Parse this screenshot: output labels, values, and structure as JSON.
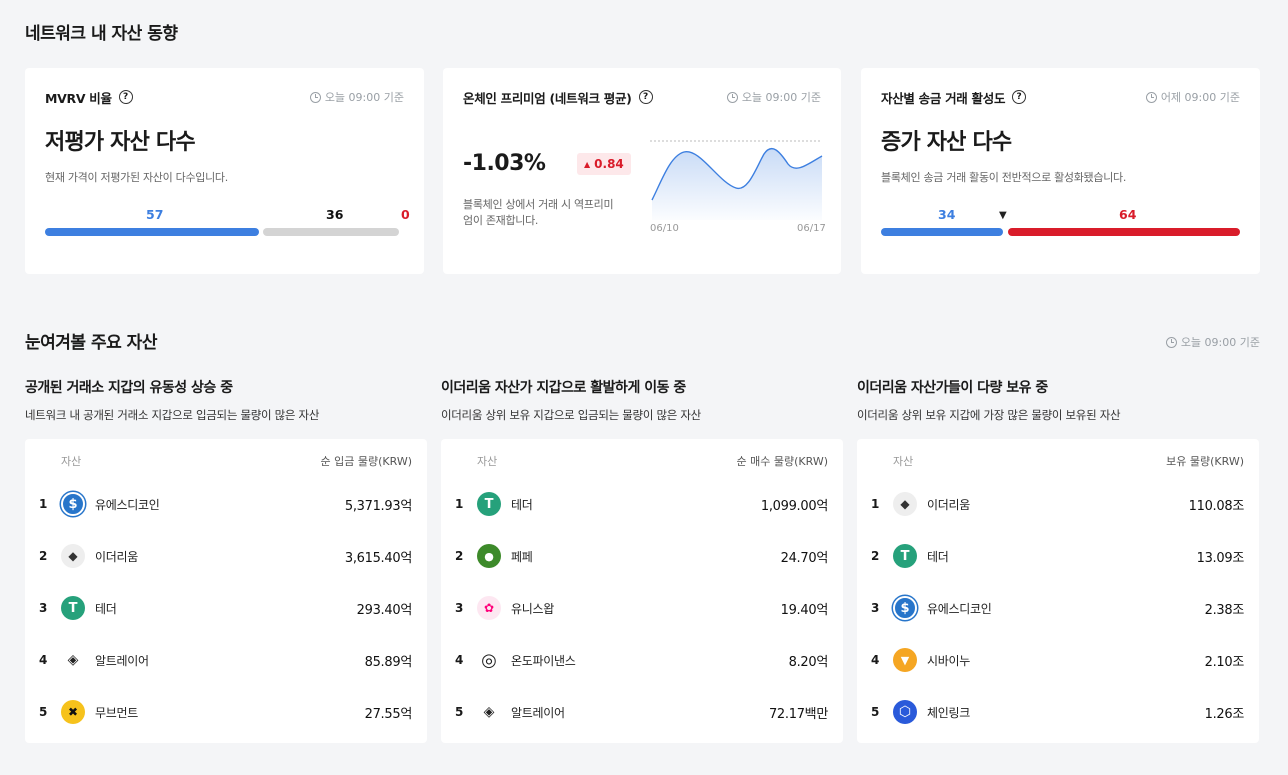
{
  "network_trend": {
    "title": "네트워크 내 자산 동향",
    "mvrv": {
      "title": "MVRV 비율",
      "help": "?",
      "stamp": "오늘 09:00 기준",
      "headline": "저평가 자산 다수",
      "description": "현재 가격이 저평가된 자산이 다수입니다.",
      "values": {
        "under": "57",
        "neutral": "36",
        "over": "0"
      },
      "colors": {
        "under": "#3d7fe0",
        "neutral": "#d4d4d4",
        "over": "#d91c2a"
      }
    },
    "premium": {
      "title": "온체인 프리미엄 (네트워크 평균)",
      "help": "?",
      "stamp": "오늘 09:00 기준",
      "value": "-1.03%",
      "change": "0.84",
      "change_arrow": "▲",
      "description_line1": "블록체인 상에서 거래 시 역프리미",
      "description_line2": "엄이 존재합니다.",
      "chart_start": "06/10",
      "chart_end": "06/17",
      "chart_color": "#3d7fe0"
    },
    "transfer": {
      "title": "자산별 송금 거래 활성도",
      "help": "?",
      "stamp": "어제 09:00 기준",
      "headline": "증가 자산 다수",
      "description": "블록체인 송금 거래 활동이 전반적으로 활성화됐습니다.",
      "values": {
        "decrease": "34",
        "increase": "64"
      },
      "marker": "▼",
      "colors": {
        "decrease": "#3d7fe0",
        "increase": "#d91c2a"
      }
    }
  },
  "watch": {
    "title": "눈여겨볼 주요 자산",
    "stamp": "오늘 09:00 기준",
    "panels": [
      {
        "title": "공개된 거래소 지갑의 유동성 상승 중",
        "description": "네트워크 내 공개된 거래소 지갑으로 입금되는 물량이 많은 자산",
        "col_asset": "자산",
        "col_value": "순 입금 물량(KRW)",
        "rows": [
          {
            "rank": "1",
            "name": "유에스디코인",
            "icon": "usdc-icon",
            "value": "5,371.93억"
          },
          {
            "rank": "2",
            "name": "이더리움",
            "icon": "ethereum-icon",
            "value": "3,615.40억"
          },
          {
            "rank": "3",
            "name": "테더",
            "icon": "tether-icon",
            "value": "293.40억"
          },
          {
            "rank": "4",
            "name": "알트레이어",
            "icon": "altlayer-icon",
            "value": "85.89억"
          },
          {
            "rank": "5",
            "name": "무브먼트",
            "icon": "movement-icon",
            "value": "27.55억"
          }
        ]
      },
      {
        "title": "이더리움 자산가 지갑으로 활발하게 이동 중",
        "description": "이더리움 상위 보유 지갑으로 입금되는 물량이 많은 자산",
        "col_asset": "자산",
        "col_value": "순 매수 물량(KRW)",
        "rows": [
          {
            "rank": "1",
            "name": "테더",
            "icon": "tether-icon",
            "value": "1,099.00억"
          },
          {
            "rank": "2",
            "name": "페페",
            "icon": "pepe-icon",
            "value": "24.70억"
          },
          {
            "rank": "3",
            "name": "유니스왑",
            "icon": "uniswap-icon",
            "value": "19.40억"
          },
          {
            "rank": "4",
            "name": "온도파이낸스",
            "icon": "ondo-icon",
            "value": "8.20억"
          },
          {
            "rank": "5",
            "name": "알트레이어",
            "icon": "altlayer-icon",
            "value": "72.17백만"
          }
        ]
      },
      {
        "title": "이더리움 자산가들이 다량 보유 중",
        "description": "이더리움 상위 보유 지갑에 가장 많은 물량이 보유된 자산",
        "col_asset": "자산",
        "col_value": "보유 물량(KRW)",
        "rows": [
          {
            "rank": "1",
            "name": "이더리움",
            "icon": "ethereum-icon",
            "value": "110.08조"
          },
          {
            "rank": "2",
            "name": "테더",
            "icon": "tether-icon",
            "value": "13.09조"
          },
          {
            "rank": "3",
            "name": "유에스디코인",
            "icon": "usdc-icon",
            "value": "2.38조"
          },
          {
            "rank": "4",
            "name": "시바이누",
            "icon": "shiba-inu-icon",
            "value": "2.10조"
          },
          {
            "rank": "5",
            "name": "체인링크",
            "icon": "chainlink-icon",
            "value": "1.26조"
          }
        ]
      }
    ]
  }
}
